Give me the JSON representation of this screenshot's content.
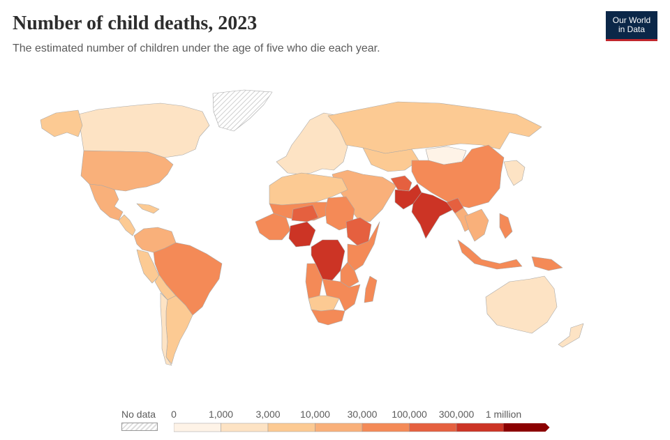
{
  "header": {
    "title": "Number of child deaths, 2023",
    "subtitle": "The estimated number of children under the age of five who die each year.",
    "logo_line1": "Our World",
    "logo_line2": "in Data"
  },
  "legend": {
    "nodata_label": "No data",
    "bins": [
      {
        "label": "0",
        "color": "#fef3e7"
      },
      {
        "label": "1,000",
        "color": "#fde3c4"
      },
      {
        "label": "3,000",
        "color": "#fcca93"
      },
      {
        "label": "10,000",
        "color": "#f9b07a"
      },
      {
        "label": "30,000",
        "color": "#f48a57"
      },
      {
        "label": "100,000",
        "color": "#e5603f"
      },
      {
        "label": "300,000",
        "color": "#cc3425"
      },
      {
        "label": "1 million",
        "color": "#8b0000"
      }
    ]
  },
  "colors": {
    "nodata": "#dddddd",
    "border": "#a8a8a8",
    "logo_bg": "#0b2748",
    "logo_accent": "#c0262c"
  },
  "map_regions": [
    {
      "name": "Greenland",
      "color": "nodata"
    },
    {
      "name": "Canada",
      "color": "#fde3c4"
    },
    {
      "name": "Alaska",
      "color": "#fcca93"
    },
    {
      "name": "United States",
      "color": "#f9b07a"
    },
    {
      "name": "Mexico",
      "color": "#f9b07a"
    },
    {
      "name": "Central America",
      "color": "#fcca93"
    },
    {
      "name": "Caribbean",
      "color": "#fcca93"
    },
    {
      "name": "Colombia / Venezuela",
      "color": "#f9b07a"
    },
    {
      "name": "Peru",
      "color": "#fcca93"
    },
    {
      "name": "Brazil",
      "color": "#f48a57"
    },
    {
      "name": "Bolivia",
      "color": "#fcca93"
    },
    {
      "name": "Argentina",
      "color": "#fcca93"
    },
    {
      "name": "Chile",
      "color": "#fde3c4"
    },
    {
      "name": "Europe",
      "color": "#fde3c4"
    },
    {
      "name": "Russia",
      "color": "#fcca93"
    },
    {
      "name": "Kazakhstan",
      "color": "#fcca93"
    },
    {
      "name": "Mongolia",
      "color": "#fef3e7"
    },
    {
      "name": "China",
      "color": "#f48a57"
    },
    {
      "name": "Japan / Korea",
      "color": "#fde3c4"
    },
    {
      "name": "Middle East",
      "color": "#f9b07a"
    },
    {
      "name": "Afghanistan",
      "color": "#e5603f"
    },
    {
      "name": "Pakistan",
      "color": "#cc3425"
    },
    {
      "name": "India",
      "color": "#cc3425"
    },
    {
      "name": "Bangladesh",
      "color": "#e5603f"
    },
    {
      "name": "Myanmar",
      "color": "#f9b07a"
    },
    {
      "name": "Southeast Asia",
      "color": "#f9b07a"
    },
    {
      "name": "Philippines",
      "color": "#f48a57"
    },
    {
      "name": "Indonesia",
      "color": "#f48a57"
    },
    {
      "name": "Papua New Guinea",
      "color": "#f48a57"
    },
    {
      "name": "Australia",
      "color": "#fde3c4"
    },
    {
      "name": "New Zealand",
      "color": "#fde3c4"
    },
    {
      "name": "North Africa",
      "color": "#fcca93"
    },
    {
      "name": "Sahel",
      "color": "#f48a57"
    },
    {
      "name": "West Africa",
      "color": "#f48a57"
    },
    {
      "name": "Nigeria",
      "color": "#cc3425"
    },
    {
      "name": "Niger",
      "color": "#e5603f"
    },
    {
      "name": "Sudan",
      "color": "#f48a57"
    },
    {
      "name": "Ethiopia",
      "color": "#e5603f"
    },
    {
      "name": "Somalia / Kenya",
      "color": "#f48a57"
    },
    {
      "name": "DR Congo",
      "color": "#cc3425"
    },
    {
      "name": "Angola",
      "color": "#f48a57"
    },
    {
      "name": "Tanzania",
      "color": "#f48a57"
    },
    {
      "name": "Zambia / Mozambique",
      "color": "#f48a57"
    },
    {
      "name": "Botswana / Namibia",
      "color": "#fcca93"
    },
    {
      "name": "South Africa",
      "color": "#f48a57"
    },
    {
      "name": "Madagascar",
      "color": "#f48a57"
    }
  ]
}
